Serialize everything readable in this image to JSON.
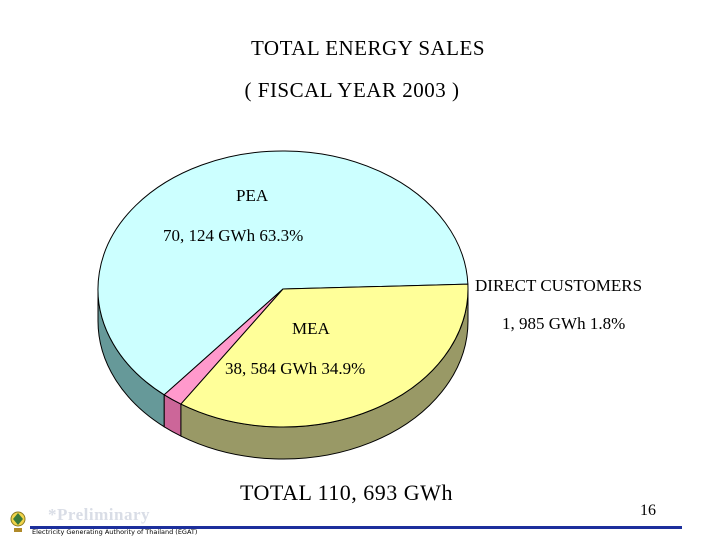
{
  "title": "TOTAL  ENERGY  SALES",
  "subtitle": "( FISCAL YEAR  2003 )",
  "total_label": "TOTAL  110, 693  GWh",
  "preliminary_note": "*Preliminary",
  "organization": "Electricity Generating Authority of Thailand (EGAT)",
  "page_number": "16",
  "colors": {
    "pea": "#ccffff",
    "pea_side": "#669999",
    "mea": "#ffff99",
    "mea_side": "#999966",
    "direct": "#ff99cc",
    "direct_side": "#cc6699",
    "rule": "#1c2f9c"
  },
  "chart_data": {
    "type": "pie",
    "style": "3d",
    "title": "TOTAL  ENERGY  SALES",
    "subtitle": "( FISCAL YEAR  2003 )",
    "unit": "GWh",
    "total": 110693,
    "slices": [
      {
        "name": "PEA",
        "value": 70124,
        "percent": 63.3,
        "value_label": "70, 124  GWh  63.3%"
      },
      {
        "name": "DIRECT CUSTOMERS",
        "value": 1985,
        "percent": 1.8,
        "value_label": "1, 985  GWh  1.8%"
      },
      {
        "name": "MEA",
        "value": 38584,
        "percent": 34.9,
        "value_label": "38, 584  GWh  34.9%"
      }
    ]
  }
}
